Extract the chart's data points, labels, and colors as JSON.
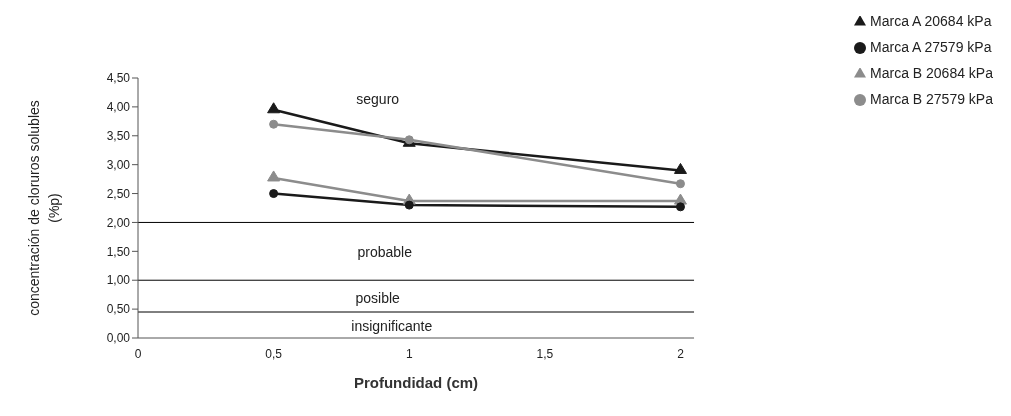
{
  "chart_data": {
    "type": "line",
    "xlabel": "Profundidad (cm)",
    "ylabel": "concentración de cloruros solubles\n(%p)",
    "x": [
      0.5,
      1,
      2
    ],
    "series": [
      {
        "name": "Marca A 27579 kPa",
        "color": "#1a1a1a",
        "marker": "circle",
        "values": [
          2.5,
          2.3,
          2.27
        ]
      },
      {
        "name": "Marca B 27579 kPa",
        "color": "#8c8c8c",
        "marker": "circle",
        "values": [
          3.7,
          3.43,
          2.67
        ]
      },
      {
        "name": "Marca A 20684 kPa",
        "color": "#1a1a1a",
        "marker": "triangle",
        "values": [
          3.95,
          3.37,
          2.9
        ]
      },
      {
        "name": "Marca B 20684 kPa",
        "color": "#8c8c8c",
        "marker": "triangle",
        "values": [
          2.77,
          2.37,
          2.37
        ]
      }
    ],
    "xlim": [
      0,
      2.05
    ],
    "xticks": [
      0,
      {
        "value": 0.5,
        "label": "0,5"
      },
      1,
      {
        "value": 1.5,
        "label": "1,5"
      },
      2
    ],
    "ylim": [
      0,
      4.5
    ],
    "yticks": [
      {
        "value": 0,
        "label": "0,00"
      },
      {
        "value": 0.5,
        "label": "0,50"
      },
      {
        "value": 1,
        "label": "1,00"
      },
      {
        "value": 1.5,
        "label": "1,50"
      },
      {
        "value": 2,
        "label": "2,00"
      },
      {
        "value": 2.5,
        "label": "2,50"
      },
      {
        "value": 3,
        "label": "3,00"
      },
      {
        "value": 3.5,
        "label": "3,50"
      },
      {
        "value": 4,
        "label": "4,00"
      },
      {
        "value": 4.5,
        "label": "4,50"
      }
    ],
    "ref_lines": [
      {
        "axis": "y",
        "value": 2,
        "color": "#000000"
      },
      {
        "axis": "y",
        "value": 1,
        "color": "#000000"
      },
      {
        "axis": "y",
        "value": 0.45,
        "color": "#000000"
      }
    ],
    "annotations": [
      "seguro",
      "probable",
      "posible",
      "insignificante"
    ],
    "grid": false,
    "legend": "top right",
    "line_style": "solid"
  }
}
